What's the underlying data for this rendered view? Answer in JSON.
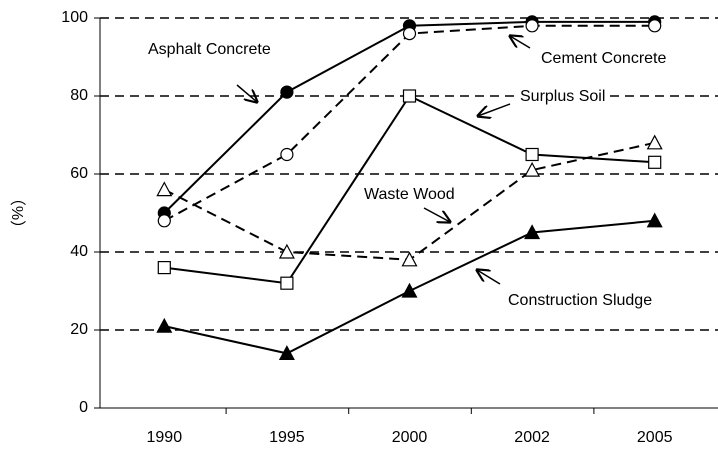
{
  "chart_data": {
    "type": "line",
    "y_label": "（%）",
    "categories": [
      "1990",
      "1995",
      "2000",
      "2002",
      "2005"
    ],
    "ylim": [
      0,
      100
    ],
    "yticks": [
      0,
      20,
      40,
      60,
      80,
      100
    ],
    "grid": true,
    "series": [
      {
        "name": "Asphalt Concrete",
        "color": "#000000",
        "marker": "filled-circle",
        "line_style": "solid",
        "values": [
          50,
          81,
          98,
          99,
          99
        ]
      },
      {
        "name": "Cement Concrete",
        "color": "#000000",
        "marker": "open-circle",
        "line_style": "dashed",
        "values": [
          48,
          65,
          96,
          98,
          98
        ]
      },
      {
        "name": "Surplus Soil",
        "color": "#000000",
        "marker": "open-square",
        "line_style": "solid",
        "values": [
          36,
          32,
          80,
          65,
          63
        ]
      },
      {
        "name": "Waste Wood",
        "color": "#000000",
        "marker": "open-triangle",
        "line_style": "dashed",
        "values": [
          56,
          40,
          38,
          61,
          68
        ]
      },
      {
        "name": "Construction Sludge",
        "color": "#000000",
        "marker": "filled-triangle",
        "line_style": "solid",
        "values": [
          21,
          14,
          30,
          45,
          48
        ]
      }
    ]
  }
}
